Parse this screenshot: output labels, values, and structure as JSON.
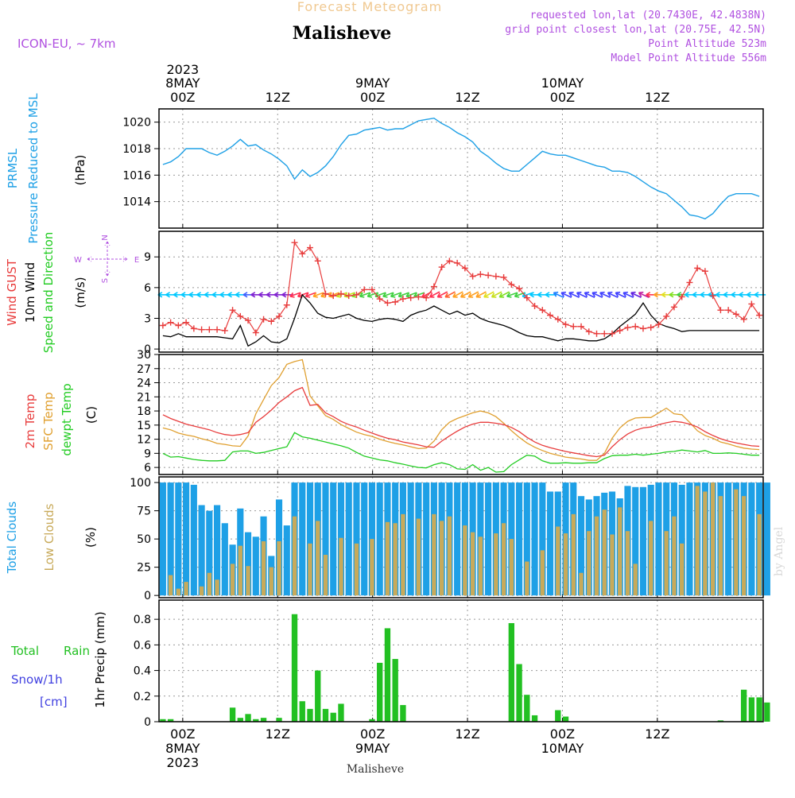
{
  "header": {
    "banner": "Forecast Meteogram",
    "model": "ICON-EU, ~ 7km",
    "location": "Malisheve",
    "requested": "requested lon,lat (20.7430E, 42.4838N)",
    "grid_point": "grid point closest lon,lat (20.75E, 42.5N)",
    "point_altitude": "Point Altitude 523m",
    "model_altitude": "Model Point Altitude 556m",
    "footer_location": "Malisheve",
    "credit": "by Angel"
  },
  "colors": {
    "pressure": "#1ea0e6",
    "gust": "#e83c3c",
    "wind": "#000000",
    "temp2m": "#e83c3c",
    "sfc": "#e0a030",
    "dewpt": "#22cc22",
    "total_clouds": "#1ea0e6",
    "low_clouds": "#c8aa5a",
    "precip": "#22c022",
    "snow": "#4040e0",
    "banner": "#f0c890",
    "info": "#b050e0"
  },
  "time_axis": {
    "top_year": "2023",
    "top_labels": [
      {
        "h": 0,
        "lines": [
          "8MAY",
          "00Z"
        ]
      },
      {
        "h": 12,
        "lines": [
          "12Z"
        ]
      },
      {
        "h": 24,
        "lines": [
          "9MAY",
          "00Z"
        ]
      },
      {
        "h": 36,
        "lines": [
          "12Z"
        ]
      },
      {
        "h": 48,
        "lines": [
          "10MAY",
          "00Z"
        ]
      },
      {
        "h": 60,
        "lines": [
          "12Z"
        ]
      }
    ],
    "bottom_labels": [
      {
        "h": 0,
        "lines": [
          "00Z",
          "8MAY",
          "2023"
        ]
      },
      {
        "h": 12,
        "lines": [
          "12Z"
        ]
      },
      {
        "h": 24,
        "lines": [
          "00Z",
          "9MAY"
        ]
      },
      {
        "h": 36,
        "lines": [
          "12Z"
        ]
      },
      {
        "h": 48,
        "lines": [
          "00Z",
          "10MAY"
        ]
      },
      {
        "h": 60,
        "lines": [
          "12Z"
        ]
      }
    ]
  },
  "chart_data": [
    {
      "type": "line",
      "panel": "pressure",
      "ylabel": [
        "PRMSL",
        "Pressure Reduced to MSL"
      ],
      "unit": "(hPa)",
      "ylim": [
        1012,
        1021
      ],
      "yticks": [
        1014,
        1016,
        1018,
        1020
      ],
      "grid": true,
      "series": [
        {
          "values": [
            1016.8,
            1017.0,
            1017.4,
            1018.0,
            1018.0,
            1018.0,
            1017.7,
            1017.5,
            1017.8,
            1018.2,
            1018.7,
            1018.2,
            1018.3,
            1017.9,
            1017.6,
            1017.2,
            1016.7,
            1015.7,
            1016.4,
            1015.9,
            1016.2,
            1016.7,
            1017.4,
            1018.3,
            1019.0,
            1019.1,
            1019.4,
            1019.5,
            1019.6,
            1019.4,
            1019.5,
            1019.5,
            1019.8,
            1020.1,
            1020.2,
            1020.3,
            1019.9,
            1019.6,
            1019.2,
            1018.9,
            1018.5,
            1017.8,
            1017.4,
            1016.9,
            1016.5,
            1016.3,
            1016.3,
            1016.8,
            1017.3,
            1017.8,
            1017.6,
            1017.5,
            1017.5,
            1017.3,
            1017.1,
            1016.9,
            1016.7,
            1016.6,
            1016.3,
            1016.3,
            1016.2,
            1015.9,
            1015.5,
            1015.1,
            1014.8,
            1014.6,
            1014.1,
            1013.6,
            1013.0,
            1012.9,
            1012.7,
            1013.1,
            1013.8,
            1014.4,
            1014.6,
            1014.6,
            1014.6,
            1014.4
          ]
        }
      ]
    },
    {
      "type": "line",
      "panel": "wind",
      "ylabel": [
        "Wind GUST",
        "10m Wind",
        "Speed and Direction"
      ],
      "unit": "(m/s)",
      "compass": {
        "n": "N",
        "s": "S",
        "w": "W",
        "e": "E"
      },
      "ylim": [
        -0.3,
        11.5
      ],
      "yticks": [
        0,
        3,
        6,
        9
      ],
      "grid": true,
      "series": [
        {
          "name": "Wind GUST",
          "values": [
            2.3,
            2.6,
            2.3,
            2.6,
            2.0,
            1.9,
            1.9,
            1.9,
            1.8,
            3.8,
            3.2,
            2.8,
            1.6,
            2.9,
            2.7,
            3.2,
            4.3,
            10.4,
            9.3,
            9.9,
            8.6,
            5.4,
            5.2,
            5.4,
            5.2,
            5.3,
            5.8,
            5.8,
            4.9,
            4.5,
            4.6,
            4.9,
            5.0,
            5.1,
            5.0,
            6.1,
            8.0,
            8.6,
            8.4,
            7.9,
            7.1,
            7.3,
            7.2,
            7.1,
            7.0,
            6.3,
            5.9,
            5.0,
            4.2,
            3.8,
            3.3,
            2.9,
            2.4,
            2.2,
            2.2,
            1.7,
            1.5,
            1.5,
            1.5,
            1.8,
            2.1,
            2.2,
            2.0,
            2.1,
            2.4,
            3.2,
            4.1,
            5.1,
            6.5,
            7.9,
            7.6,
            5.2,
            3.8,
            3.8,
            3.4,
            2.9,
            4.4,
            3.3
          ]
        },
        {
          "name": "10m Wind",
          "values": [
            1.3,
            1.2,
            1.5,
            1.2,
            1.2,
            1.2,
            1.2,
            1.2,
            1.1,
            1.0,
            2.3,
            0.3,
            0.7,
            1.3,
            0.7,
            0.6,
            1.0,
            3.0,
            5.3,
            4.5,
            3.5,
            3.1,
            3.0,
            3.2,
            3.4,
            3.0,
            2.8,
            2.7,
            2.9,
            3.0,
            2.9,
            2.7,
            3.3,
            3.6,
            3.8,
            4.2,
            3.8,
            3.4,
            3.7,
            3.3,
            3.5,
            3.0,
            2.7,
            2.5,
            2.3,
            2.0,
            1.6,
            1.3,
            1.2,
            1.2,
            1.0,
            0.8,
            1.0,
            1.0,
            0.9,
            0.8,
            0.8,
            1.0,
            1.5,
            2.2,
            2.8,
            3.4,
            4.5,
            3.3,
            2.5,
            2.2,
            2.0,
            1.7,
            1.8,
            1.8,
            1.8,
            1.8,
            1.8,
            1.8,
            1.8,
            1.8,
            1.8,
            1.8
          ]
        }
      ],
      "arrows": {
        "y": 5.3,
        "colors": [
          "#00c8ff",
          "#00c8ff",
          "#00c8ff",
          "#00c8ff",
          "#00c8ff",
          "#00c8ff",
          "#00c8ff",
          "#00c8ff",
          "#00c8ff",
          "#00c8ff",
          "#00c8ff",
          "#4060ff",
          "#8020d0",
          "#8020d0",
          "#8020d0",
          "#8020d0",
          "#8020d0",
          "#ff3050",
          "#ff3050",
          "#ff3050",
          "#ffa020",
          "#ffa020",
          "#ffa020",
          "#c8e020",
          "#c8e020",
          "#80e020",
          "#40d040",
          "#40d040",
          "#40d040",
          "#40d040",
          "#40d040",
          "#40d040",
          "#40d040",
          "#40d040",
          "#ff3050",
          "#ff3050",
          "#ff3050",
          "#ff6030",
          "#ffa020",
          "#ffa020",
          "#ffa020",
          "#ffa020",
          "#e0e020",
          "#c8e020",
          "#80e020",
          "#40d040",
          "#40d040",
          "#00c8ff",
          "#00c8ff",
          "#00c8ff",
          "#00c8ff",
          "#2080ff",
          "#4040ff",
          "#4040ff",
          "#4040ff",
          "#4040ff",
          "#4040ff",
          "#4040ff",
          "#4040ff",
          "#4040ff",
          "#4040ff",
          "#6020e0",
          "#c020a0",
          "#ff3050",
          "#ffa020",
          "#e0e020",
          "#80e020",
          "#40d040",
          "#00c8ff",
          "#00c8ff",
          "#00c8ff",
          "#00c8ff",
          "#00c8ff",
          "#00c8ff",
          "#00c8ff",
          "#00c8ff",
          "#00c8ff",
          "#00c8ff"
        ]
      }
    },
    {
      "type": "line",
      "panel": "temperature",
      "ylabel": [
        "2m Temp",
        "SFC Temp",
        "dewpt Temp"
      ],
      "unit": "(C)",
      "ylim": [
        4.5,
        30
      ],
      "yticks": [
        6,
        9,
        12,
        15,
        18,
        21,
        24,
        27,
        30
      ],
      "grid": true,
      "series": [
        {
          "name": "2m Temp",
          "values": [
            17.2,
            16.4,
            15.8,
            15.2,
            14.8,
            14.4,
            14.0,
            13.4,
            13.0,
            12.8,
            13.0,
            13.4,
            15.6,
            16.8,
            18.2,
            19.8,
            21.0,
            22.3,
            23.0,
            19.2,
            19.4,
            17.6,
            16.8,
            15.8,
            15.1,
            14.6,
            13.9,
            13.3,
            12.7,
            12.2,
            11.9,
            11.4,
            11.1,
            10.8,
            10.4,
            10.3,
            11.6,
            12.7,
            13.7,
            14.6,
            15.2,
            15.6,
            15.6,
            15.4,
            15.1,
            14.5,
            13.6,
            12.4,
            11.4,
            10.7,
            10.2,
            9.8,
            9.4,
            9.1,
            8.8,
            8.5,
            8.3,
            8.6,
            10.4,
            11.9,
            13.1,
            13.9,
            14.4,
            14.6,
            15.1,
            15.5,
            15.8,
            15.6,
            15.2,
            14.6,
            13.6,
            12.8,
            12.1,
            11.6,
            11.2,
            10.9,
            10.6,
            10.5
          ]
        },
        {
          "name": "SFC Temp",
          "values": [
            14.4,
            14.0,
            13.3,
            12.9,
            12.6,
            12.1,
            11.7,
            11.1,
            10.9,
            10.6,
            10.5,
            12.7,
            17.4,
            20.4,
            23.4,
            25.1,
            27.9,
            28.5,
            28.9,
            21.2,
            19.1,
            17.0,
            16.2,
            15.1,
            14.3,
            13.5,
            13.0,
            12.6,
            12.0,
            11.5,
            11.1,
            10.8,
            10.4,
            10.0,
            10.1,
            11.6,
            14.0,
            15.6,
            16.4,
            17.0,
            17.6,
            18.0,
            17.6,
            16.8,
            15.4,
            13.8,
            12.4,
            11.2,
            10.3,
            9.6,
            9.0,
            8.6,
            8.2,
            8.0,
            7.8,
            7.5,
            7.5,
            9.0,
            12.2,
            14.4,
            15.8,
            16.5,
            16.6,
            16.6,
            17.6,
            18.6,
            17.4,
            17.2,
            15.6,
            13.8,
            12.8,
            12.2,
            11.4,
            11.0,
            10.5,
            10.1,
            9.9,
            9.8
          ]
        },
        {
          "name": "dewpt Temp",
          "values": [
            9.0,
            8.2,
            8.3,
            8.0,
            7.7,
            7.5,
            7.4,
            7.4,
            7.5,
            9.3,
            9.5,
            9.5,
            9.0,
            9.2,
            9.6,
            10.0,
            10.4,
            13.4,
            12.5,
            12.2,
            11.8,
            11.4,
            11.0,
            10.6,
            10.1,
            9.2,
            8.4,
            8.0,
            7.6,
            7.4,
            7.0,
            6.7,
            6.3,
            6.0,
            5.9,
            6.6,
            7.0,
            6.6,
            5.7,
            5.6,
            6.6,
            5.4,
            6.0,
            5.0,
            5.1,
            6.6,
            7.6,
            8.6,
            8.4,
            7.4,
            6.9,
            6.9,
            7.0,
            6.9,
            6.9,
            7.0,
            7.0,
            7.9,
            8.5,
            8.6,
            8.6,
            8.8,
            8.6,
            8.8,
            9.0,
            9.3,
            9.4,
            9.7,
            9.5,
            9.3,
            9.6,
            9.0,
            9.0,
            9.1,
            9.0,
            8.8,
            8.6,
            8.6
          ]
        }
      ]
    },
    {
      "type": "bar",
      "panel": "clouds",
      "ylabel": [
        "Total Clouds",
        "Low Clouds"
      ],
      "unit": "(%)",
      "ylim": [
        -2,
        105
      ],
      "yticks": [
        0,
        25,
        50,
        75,
        100
      ],
      "grid": true,
      "series": [
        {
          "name": "Total Clouds",
          "values": [
            100,
            100,
            100,
            100,
            98,
            80,
            75,
            80,
            64,
            45,
            77,
            56,
            52,
            70,
            35,
            85,
            62,
            100,
            100,
            100,
            100,
            100,
            100,
            100,
            100,
            100,
            100,
            100,
            100,
            100,
            100,
            100,
            100,
            100,
            100,
            100,
            100,
            100,
            100,
            100,
            100,
            100,
            100,
            100,
            100,
            100,
            100,
            100,
            100,
            100,
            92,
            92,
            100,
            100,
            88,
            85,
            88,
            91,
            92,
            86,
            97,
            96,
            96,
            98,
            100,
            100,
            100,
            98,
            100,
            100,
            100,
            100,
            100,
            100,
            100,
            100,
            100,
            100,
            100
          ]
        },
        {
          "name": "Low Clouds",
          "values": [
            0,
            18,
            6,
            12,
            0,
            8,
            20,
            14,
            0,
            28,
            44,
            26,
            0,
            48,
            25,
            48,
            0,
            70,
            0,
            46,
            66,
            36,
            0,
            51,
            0,
            46,
            0,
            50,
            0,
            65,
            64,
            72,
            0,
            68,
            0,
            72,
            66,
            70,
            0,
            62,
            56,
            52,
            0,
            55,
            64,
            50,
            0,
            30,
            0,
            40,
            0,
            61,
            55,
            72,
            20,
            57,
            70,
            76,
            54,
            78,
            57,
            28,
            0,
            66,
            0,
            57,
            70,
            46,
            0,
            97,
            92,
            100,
            88,
            0,
            94,
            88,
            0,
            72,
            0
          ]
        }
      ]
    },
    {
      "type": "bar",
      "panel": "precip",
      "ylabel": [
        "Total",
        "Rain",
        "Snow/1h",
        "[cm]",
        "1hr Precip (mm)"
      ],
      "ylim": [
        0,
        0.95
      ],
      "yticks": [
        0,
        0.2,
        0.4,
        0.6,
        0.8
      ],
      "ytick_labels": [
        "0",
        "0.2",
        "0.4",
        "0.6",
        "0.8"
      ],
      "grid": true,
      "series": [
        {
          "name": "Total Rain",
          "values": [
            0.02,
            0.02,
            0,
            0,
            0,
            0,
            0,
            0,
            0,
            0.11,
            0.03,
            0.06,
            0.02,
            0.03,
            0,
            0.03,
            0,
            0.84,
            0.16,
            0.1,
            0.4,
            0.1,
            0.07,
            0.14,
            0,
            0,
            0,
            0.02,
            0.46,
            0.73,
            0.49,
            0.13,
            0,
            0,
            0,
            0,
            0,
            0,
            0,
            0,
            0,
            0,
            0,
            0,
            0,
            0.77,
            0.45,
            0.21,
            0.05,
            0,
            0,
            0.09,
            0.04,
            0,
            0,
            0,
            0,
            0,
            0,
            0,
            0,
            0,
            0,
            0,
            0,
            0,
            0,
            0,
            0,
            0,
            0,
            0,
            0.01,
            0,
            0,
            0.25,
            0.19,
            0.19,
            0.15
          ]
        }
      ]
    }
  ]
}
